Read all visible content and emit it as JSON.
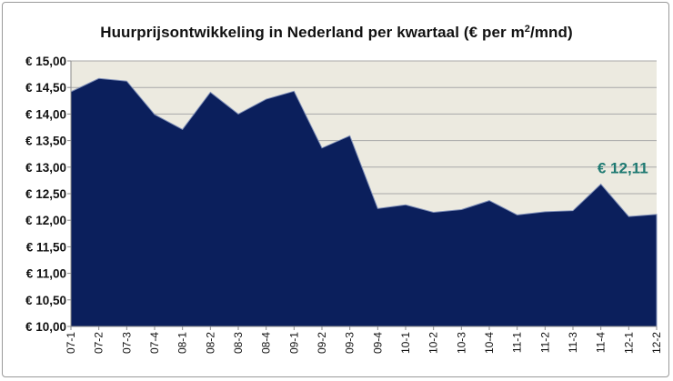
{
  "chart_data": {
    "type": "area",
    "title_main": "Huurprijsontwikkeling in Nederland per kwartaal (€ per m",
    "title_sup": "2",
    "title_end": "/mnd)",
    "categories": [
      "07-1",
      "07-2",
      "07-3",
      "07-4",
      "08-1",
      "08-2",
      "08-3",
      "08-4",
      "09-1",
      "09-2",
      "09-3",
      "09-4",
      "10-1",
      "10-2",
      "10-3",
      "10-4",
      "11-1",
      "11-2",
      "11-3",
      "11-4",
      "12-1",
      "12-2"
    ],
    "series": [
      {
        "values": [
          14.42,
          14.67,
          14.62,
          13.99,
          13.71,
          14.41,
          14.0,
          14.28,
          14.43,
          13.36,
          13.59,
          12.22,
          12.29,
          12.15,
          12.2,
          12.37,
          12.1,
          12.16,
          12.18,
          12.68,
          12.07,
          12.11
        ]
      }
    ],
    "ylim": [
      10,
      15
    ],
    "yticks": [
      {
        "value": 15.0,
        "label": "€ 15,00"
      },
      {
        "value": 14.5,
        "label": "€ 14,50"
      },
      {
        "value": 14.0,
        "label": "€ 14,00"
      },
      {
        "value": 13.5,
        "label": "€ 13,50"
      },
      {
        "value": 13.0,
        "label": "€ 13,00"
      },
      {
        "value": 12.5,
        "label": "€ 12,50"
      },
      {
        "value": 12.0,
        "label": "€ 12,00"
      },
      {
        "value": 11.5,
        "label": "€ 11,50"
      },
      {
        "value": 11.0,
        "label": "€ 11,00"
      },
      {
        "value": 10.5,
        "label": "€ 10,50"
      },
      {
        "value": 10.0,
        "label": "€ 10,00"
      }
    ],
    "annotation": {
      "text": "€ 12,11",
      "color": "#1f7a72"
    },
    "grid": true,
    "colors": {
      "area": "#0b1f5c",
      "plot_bg": "#eceae0",
      "grid": "#a8a8a8"
    }
  }
}
